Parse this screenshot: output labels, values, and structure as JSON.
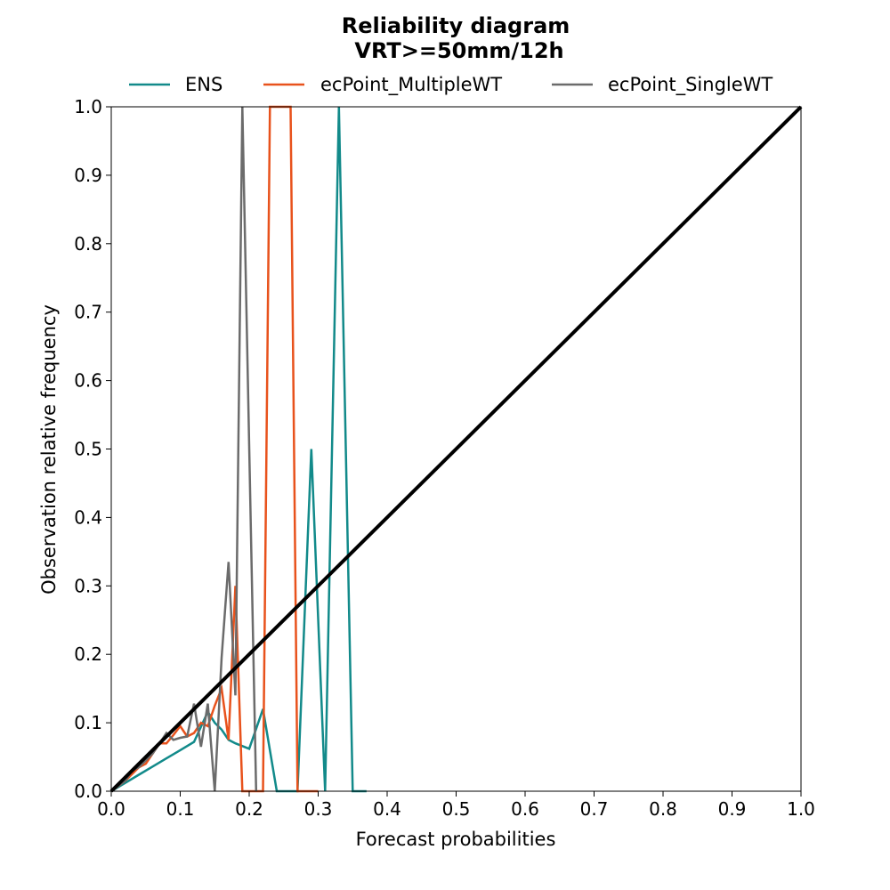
{
  "chart_data": {
    "type": "line",
    "title": "Reliability diagram",
    "subtitle": "VRT>=50mm/12h",
    "xlabel": "Forecast probabilities",
    "ylabel": "Observation relative frequency",
    "xlim": [
      0,
      1
    ],
    "ylim": [
      0,
      1
    ],
    "xticks": [
      "0.0",
      "0.1",
      "0.2",
      "0.3",
      "0.4",
      "0.5",
      "0.6",
      "0.7",
      "0.8",
      "0.9",
      "1.0"
    ],
    "yticks": [
      "0.0",
      "0.1",
      "0.2",
      "0.3",
      "0.4",
      "0.5",
      "0.6",
      "0.7",
      "0.8",
      "0.9",
      "1.0"
    ],
    "grid": false,
    "legend_position": "top",
    "series": [
      {
        "name": "ENS",
        "color": "#128a8a",
        "x": [
          0.0,
          0.02,
          0.04,
          0.06,
          0.08,
          0.1,
          0.12,
          0.14,
          0.15,
          0.16,
          0.17,
          0.18,
          0.2,
          0.22,
          0.24,
          0.26,
          0.27,
          0.29,
          0.31,
          0.33,
          0.35,
          0.37
        ],
        "y": [
          0.0,
          0.012,
          0.024,
          0.036,
          0.048,
          0.06,
          0.072,
          0.116,
          0.1,
          0.09,
          0.075,
          0.07,
          0.062,
          0.12,
          0.0,
          0.0,
          0.0,
          0.5,
          0.0,
          1.0,
          0.0,
          0.0
        ]
      },
      {
        "name": "ecPoint_MultipleWT",
        "color": "#e8521c",
        "x": [
          0.0,
          0.02,
          0.03,
          0.04,
          0.05,
          0.06,
          0.07,
          0.08,
          0.09,
          0.1,
          0.11,
          0.12,
          0.13,
          0.14,
          0.15,
          0.16,
          0.17,
          0.18,
          0.19,
          0.21,
          0.22,
          0.23,
          0.24,
          0.26,
          0.27,
          0.29,
          0.3
        ],
        "y": [
          0.0,
          0.015,
          0.025,
          0.035,
          0.04,
          0.055,
          0.07,
          0.07,
          0.082,
          0.095,
          0.08,
          0.085,
          0.1,
          0.095,
          0.125,
          0.15,
          0.075,
          0.3,
          0.0,
          0.0,
          0.0,
          1.0,
          1.0,
          1.0,
          0.0,
          0.0,
          0.0
        ]
      },
      {
        "name": "ecPoint_SingleWT",
        "color": "#6b6b6b",
        "x": [
          0.0,
          0.02,
          0.03,
          0.04,
          0.05,
          0.06,
          0.07,
          0.08,
          0.09,
          0.1,
          0.11,
          0.12,
          0.13,
          0.14,
          0.15,
          0.16,
          0.17,
          0.18,
          0.19,
          0.21
        ],
        "y": [
          0.0,
          0.015,
          0.03,
          0.035,
          0.045,
          0.055,
          0.07,
          0.085,
          0.075,
          0.078,
          0.08,
          0.128,
          0.065,
          0.128,
          0.0,
          0.195,
          0.335,
          0.14,
          1.0,
          0.0
        ]
      }
    ],
    "diagonal": {
      "color": "#000000",
      "from": [
        0,
        0
      ],
      "to": [
        1,
        1
      ]
    }
  }
}
